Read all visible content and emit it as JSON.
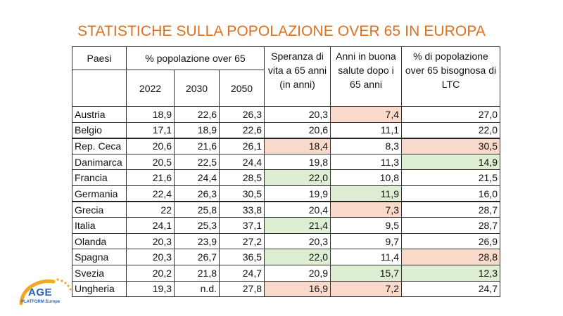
{
  "title": "STATISTICHE SULLA POPOLAZIONE OVER 65 IN EUROPA",
  "headers": {
    "country": "Paesi",
    "pct_group": "% popolazione over 65",
    "years": [
      "2022",
      "2030",
      "2050"
    ],
    "life_expectancy": "Speranza di vita a 65 anni (in anni)",
    "healthy_years": "Anni in buona salute dopo i 65 anni",
    "ltc": "% di popolazione over 65 bisognosa di LTC"
  },
  "rows": [
    {
      "country": "Austria",
      "y2022": "18,9",
      "y2030": "22,6",
      "y2050": "26,3",
      "life": "20,3",
      "healthy": "7,4",
      "ltc": "27,0"
    },
    {
      "country": "Belgio",
      "y2022": "17,1",
      "y2030": "18,9",
      "y2050": "22,6",
      "life": "20,6",
      "healthy": "11,1",
      "ltc": "22,0"
    },
    {
      "country": "Rep. Ceca",
      "y2022": "20,6",
      "y2030": "21,6",
      "y2050": "26,1",
      "life": "18,4",
      "healthy": "8,3",
      "ltc": "30,5"
    },
    {
      "country": "Danimarca",
      "y2022": "20,5",
      "y2030": "22,5",
      "y2050": "24,4",
      "life": "19,8",
      "healthy": "11,3",
      "ltc": "14,9"
    },
    {
      "country": "Francia",
      "y2022": "21,6",
      "y2030": "24,4",
      "y2050": "28,5",
      "life": "22,0",
      "healthy": "10,8",
      "ltc": "21,5"
    },
    {
      "country": "Germania",
      "y2022": "22,4",
      "y2030": "26,3",
      "y2050": "30,5",
      "life": "19,9",
      "healthy": "11,9",
      "ltc": "16,0"
    },
    {
      "country": "Grecia",
      "y2022": "22",
      "y2030": "25,8",
      "y2050": "33,8",
      "life": "20,4",
      "healthy": "7,3",
      "ltc": "28,7"
    },
    {
      "country": "Italia",
      "y2022": "24,1",
      "y2030": "25,3",
      "y2050": "37,1",
      "life": "21,4",
      "healthy": "9,5",
      "ltc": "28,7"
    },
    {
      "country": "Olanda",
      "y2022": "20,3",
      "y2030": "23,9",
      "y2050": "27,2",
      "life": "20,3",
      "healthy": "9,7",
      "ltc": "26,9"
    },
    {
      "country": "Spagna",
      "y2022": "20,3",
      "y2030": "26,7",
      "y2050": "36,5",
      "life": "22,0",
      "healthy": "11,4",
      "ltc": "28,8"
    },
    {
      "country": "Svezia",
      "y2022": "20,2",
      "y2030": "21,8",
      "y2050": "24,7",
      "life": "20,9",
      "healthy": "15,7",
      "ltc": "12,3"
    },
    {
      "country": "Ungheria",
      "y2022": "19,3",
      "y2030": "n.d.",
      "y2050": "27,8",
      "life": "16,9",
      "healthy": "7,2",
      "ltc": "24,7"
    }
  ],
  "highlight_colors": {
    "worse": "#f9d9c9",
    "better": "#ddeed3"
  },
  "logo": {
    "text_main": "AGE",
    "text_sub": "PLATFORM Europe",
    "colors": [
      "#f5a623",
      "#2a63b1"
    ]
  }
}
